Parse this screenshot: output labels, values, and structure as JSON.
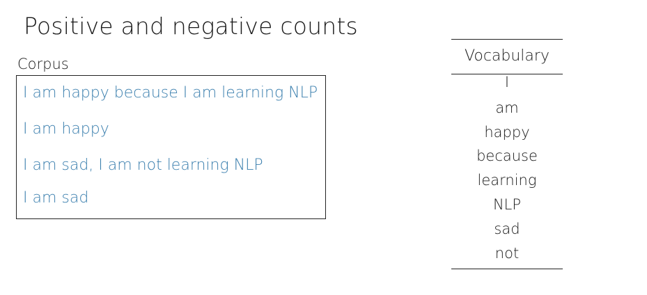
{
  "title": "Positive and negative counts",
  "corpus": {
    "label": "Corpus",
    "lines": [
      "I am happy because I am learning NLP",
      "I am happy",
      "I am sad, I am not learning NLP",
      "I am sad"
    ]
  },
  "vocabulary": {
    "header": "Vocabulary",
    "words": [
      "I",
      "am",
      "happy",
      "because",
      "learning",
      "NLP",
      "sad",
      "not"
    ]
  },
  "colors": {
    "corpus_text": "#3b7fae",
    "text": "#1a1a1a"
  }
}
